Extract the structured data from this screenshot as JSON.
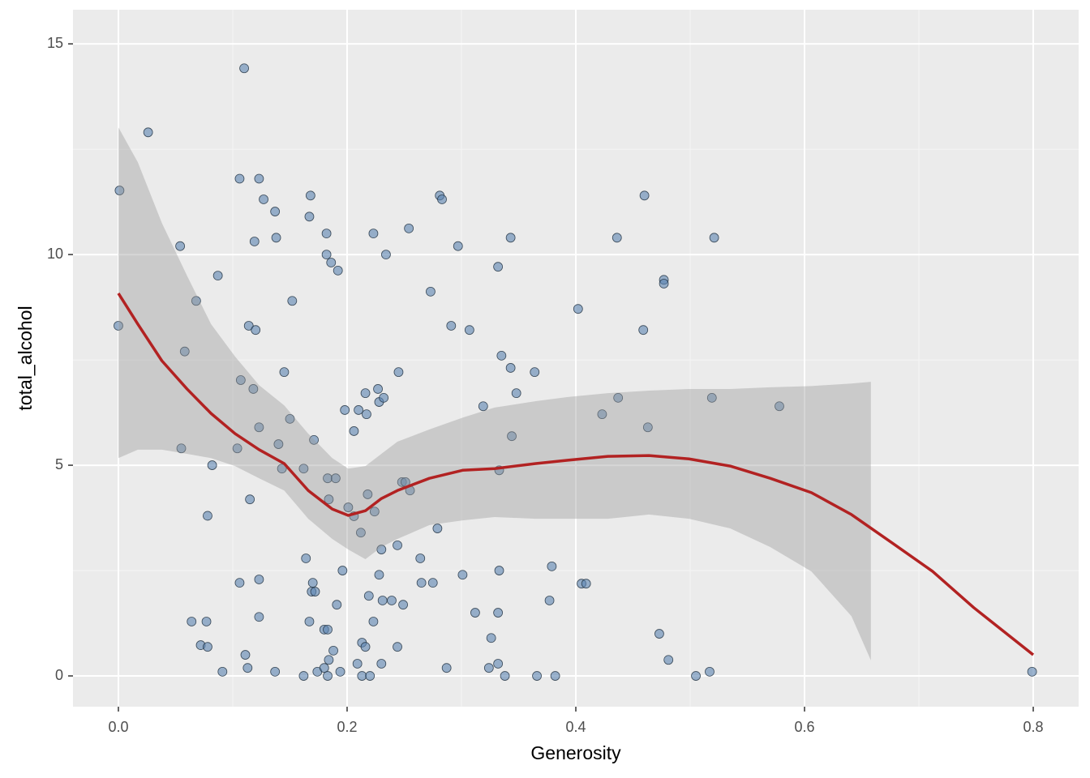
{
  "chart_data": {
    "type": "scatter",
    "x_label": "Generosity",
    "y_label": "total_alcohol",
    "xlim": [
      -0.0397,
      0.8397
    ],
    "ylim": [
      -0.73,
      15.81
    ],
    "xticks": [
      {
        "value": 0,
        "label": "0.0"
      },
      {
        "value": 0.2,
        "label": "0.2"
      },
      {
        "value": 0.4,
        "label": "0.4"
      },
      {
        "value": 0.6,
        "label": "0.6"
      },
      {
        "value": 0.8,
        "label": "0.8"
      }
    ],
    "yticks": [
      0,
      5,
      10,
      15
    ],
    "grid": true,
    "minor_grid": true,
    "background": "#ebebeb",
    "point_color": "#5b84b1",
    "point_stroke": "#1a2a3a",
    "points": {
      "x": [
        0.0,
        0.001,
        0.026,
        0.054,
        0.055,
        0.058,
        0.064,
        0.068,
        0.072,
        0.077,
        0.078,
        0.078,
        0.082,
        0.087,
        0.091,
        0.104,
        0.106,
        0.106,
        0.107,
        0.11,
        0.111,
        0.113,
        0.114,
        0.115,
        0.118,
        0.119,
        0.12,
        0.123,
        0.123,
        0.123,
        0.123,
        0.127,
        0.137,
        0.137,
        0.138,
        0.14,
        0.143,
        0.145,
        0.15,
        0.152,
        0.162,
        0.162,
        0.164,
        0.167,
        0.167,
        0.168,
        0.169,
        0.17,
        0.171,
        0.172,
        0.174,
        0.18,
        0.18,
        0.182,
        0.182,
        0.183,
        0.183,
        0.183,
        0.184,
        0.184,
        0.186,
        0.188,
        0.19,
        0.191,
        0.192,
        0.194,
        0.196,
        0.198,
        0.201,
        0.206,
        0.206,
        0.209,
        0.21,
        0.212,
        0.213,
        0.213,
        0.216,
        0.216,
        0.217,
        0.218,
        0.219,
        0.22,
        0.223,
        0.223,
        0.224,
        0.227,
        0.228,
        0.228,
        0.23,
        0.23,
        0.231,
        0.232,
        0.234,
        0.239,
        0.244,
        0.244,
        0.245,
        0.248,
        0.249,
        0.251,
        0.254,
        0.255,
        0.264,
        0.265,
        0.273,
        0.275,
        0.279,
        0.281,
        0.283,
        0.287,
        0.291,
        0.297,
        0.301,
        0.307,
        0.312,
        0.319,
        0.324,
        0.326,
        0.332,
        0.332,
        0.332,
        0.333,
        0.333,
        0.335,
        0.338,
        0.343,
        0.343,
        0.344,
        0.348,
        0.364,
        0.366,
        0.377,
        0.379,
        0.382,
        0.402,
        0.405,
        0.409,
        0.423,
        0.436,
        0.437,
        0.459,
        0.46,
        0.463,
        0.473,
        0.477,
        0.477,
        0.481,
        0.505,
        0.517,
        0.519,
        0.521,
        0.578,
        0.799
      ],
      "y": [
        8.31,
        11.52,
        12.9,
        10.2,
        5.4,
        7.7,
        1.29,
        8.9,
        0.73,
        1.29,
        3.8,
        0.69,
        5.0,
        9.5,
        0.1,
        5.4,
        11.8,
        2.21,
        7.02,
        14.42,
        0.5,
        0.19,
        8.31,
        4.19,
        6.81,
        10.31,
        8.21,
        11.8,
        1.4,
        5.9,
        2.29,
        11.31,
        11.02,
        0.1,
        10.4,
        5.5,
        4.92,
        7.21,
        6.1,
        8.9,
        4.92,
        0.0,
        2.79,
        1.29,
        10.9,
        11.4,
        2.0,
        2.21,
        5.6,
        2.0,
        0.1,
        0.19,
        1.1,
        10.5,
        10.0,
        1.1,
        4.69,
        0.0,
        0.38,
        4.19,
        9.81,
        0.6,
        4.69,
        1.69,
        9.62,
        0.1,
        2.5,
        6.31,
        4.0,
        5.81,
        3.79,
        0.29,
        6.31,
        3.4,
        0.0,
        0.79,
        6.71,
        0.69,
        6.21,
        4.31,
        1.9,
        0.0,
        10.5,
        1.29,
        3.9,
        6.81,
        2.4,
        6.5,
        0.29,
        3.0,
        1.79,
        6.6,
        10.0,
        1.79,
        3.1,
        0.69,
        7.21,
        4.6,
        1.69,
        4.6,
        10.62,
        4.4,
        2.79,
        2.21,
        9.12,
        2.21,
        3.5,
        11.4,
        11.31,
        0.19,
        8.31,
        10.2,
        2.4,
        8.21,
        1.5,
        6.4,
        0.19,
        0.9,
        9.71,
        1.5,
        0.29,
        2.5,
        4.88,
        7.6,
        0.0,
        10.4,
        7.31,
        5.69,
        6.71,
        7.21,
        0.0,
        1.79,
        2.6,
        0.0,
        8.71,
        2.19,
        2.19,
        6.21,
        10.4,
        6.6,
        8.21,
        11.4,
        5.9,
        1.0,
        9.4,
        9.31,
        0.38,
        0.0,
        0.1,
        6.6,
        10.4,
        6.4,
        0.1
      ]
    },
    "smooth": {
      "color": "#b22222",
      "x": [
        0,
        0.017,
        0.038,
        0.06,
        0.081,
        0.102,
        0.123,
        0.145,
        0.166,
        0.187,
        0.201,
        0.216,
        0.23,
        0.244,
        0.272,
        0.301,
        0.329,
        0.365,
        0.393,
        0.428,
        0.464,
        0.499,
        0.535,
        0.57,
        0.606,
        0.641,
        0.677,
        0.712,
        0.748,
        0.8
      ],
      "y": [
        9.08,
        8.35,
        7.48,
        6.81,
        6.23,
        5.75,
        5.37,
        5.04,
        4.4,
        3.96,
        3.81,
        3.92,
        4.21,
        4.4,
        4.69,
        4.88,
        4.92,
        5.04,
        5.12,
        5.21,
        5.23,
        5.15,
        4.98,
        4.69,
        4.35,
        3.83,
        3.15,
        2.48,
        1.62,
        0.5
      ]
    },
    "band": {
      "color": "#999999",
      "x": [
        0,
        0.017,
        0.038,
        0.06,
        0.081,
        0.102,
        0.123,
        0.145,
        0.166,
        0.187,
        0.201,
        0.216,
        0.23,
        0.244,
        0.272,
        0.301,
        0.329,
        0.365,
        0.393,
        0.428,
        0.464,
        0.499,
        0.535,
        0.57,
        0.606,
        0.641,
        0.658
      ],
      "upper": [
        13.02,
        12.19,
        10.75,
        9.5,
        8.35,
        7.58,
        6.9,
        6.42,
        5.75,
        5.17,
        4.92,
        4.98,
        5.27,
        5.56,
        5.85,
        6.13,
        6.37,
        6.52,
        6.62,
        6.71,
        6.77,
        6.81,
        6.81,
        6.85,
        6.88,
        6.94,
        6.98
      ],
      "lower": [
        5.17,
        5.37,
        5.37,
        5.27,
        5.17,
        4.98,
        4.69,
        4.4,
        3.73,
        3.25,
        3.0,
        2.77,
        3.06,
        3.25,
        3.58,
        3.69,
        3.77,
        3.73,
        3.73,
        3.73,
        3.83,
        3.73,
        3.5,
        3.06,
        2.48,
        1.42,
        0.37
      ]
    }
  }
}
